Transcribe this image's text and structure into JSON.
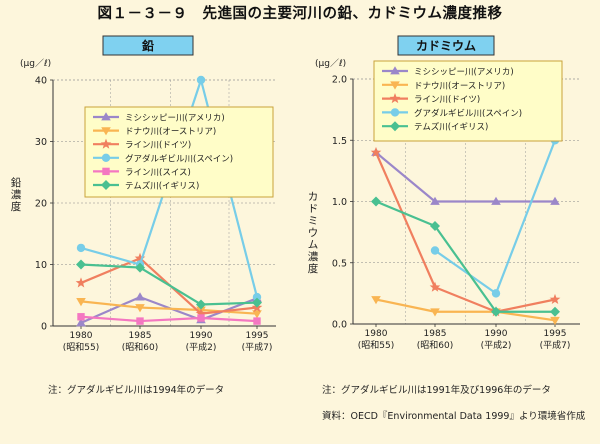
{
  "figure_title": "図１－３－９　先進国の主要河川の鉛、カドミウム濃度推移",
  "colors": {
    "background": "#fdf6dc",
    "panel_label_fill": "#7fd1f0",
    "legend_fill": "#fffdc8",
    "legend_border": "#c9a23a"
  },
  "chart_data": [
    {
      "type": "line",
      "title": "鉛",
      "unit_label": "(μg／ℓ)",
      "ylabel": "鉛濃度",
      "ylim": [
        0,
        40
      ],
      "yticks": [
        "0",
        "10",
        "20",
        "30",
        "40"
      ],
      "categories": [
        "1980\n(昭和55)",
        "1985\n(昭和60)",
        "1990\n(平成2)",
        "1995\n(平成7)"
      ],
      "legend_placement": "center",
      "series": [
        {
          "name": "ミシシッピー川(アメリカ)",
          "color": "#9b87c9",
          "marker": "triangle",
          "values": [
            0.5,
            4.7,
            1.0,
            4.5
          ]
        },
        {
          "name": "ドナウ川(オーストリア)",
          "color": "#f9b552",
          "marker": "triangle-down",
          "values": [
            4.0,
            3.0,
            2.6,
            2.0
          ]
        },
        {
          "name": "ライン川(ドイツ)",
          "color": "#f07f5f",
          "marker": "star",
          "values": [
            7.0,
            11.0,
            2.0,
            3.0
          ]
        },
        {
          "name": "グアダルギビル川(スペイン)",
          "color": "#77cde8",
          "marker": "circle",
          "values": [
            12.7,
            10.0,
            40.0,
            4.7
          ]
        },
        {
          "name": "ライン川(スイス)",
          "color": "#f477c1",
          "marker": "square",
          "values": [
            1.5,
            0.8,
            1.3,
            0.8
          ]
        },
        {
          "name": "テムズ川(イギリス)",
          "color": "#49c091",
          "marker": "diamond",
          "values": [
            10.0,
            9.5,
            3.5,
            3.8
          ]
        }
      ]
    },
    {
      "type": "line",
      "title": "カドミウム",
      "unit_label": "(μg／ℓ)",
      "ylabel": "カドミウム濃度",
      "ylim": [
        0,
        2
      ],
      "yticks": [
        "0.0",
        "0.5",
        "1.0",
        "1.5",
        "2.0"
      ],
      "categories": [
        "1980\n(昭和55)",
        "1985\n(昭和60)",
        "1990\n(平成2)",
        "1995\n(平成7)"
      ],
      "legend_placement": "top",
      "series": [
        {
          "name": "ミシシッピー川(アメリカ)",
          "color": "#9b87c9",
          "marker": "triangle",
          "values": [
            1.4,
            1.0,
            1.0,
            1.0
          ]
        },
        {
          "name": "ドナウ川(オーストリア)",
          "color": "#f9b552",
          "marker": "triangle-down",
          "values": [
            0.2,
            0.1,
            0.1,
            0.03
          ]
        },
        {
          "name": "ライン川(ドイツ)",
          "color": "#f07f5f",
          "marker": "star",
          "values": [
            1.4,
            0.3,
            0.1,
            0.2
          ]
        },
        {
          "name": "グアダルギビル川(スペイン)",
          "color": "#77cde8",
          "marker": "circle",
          "values": [
            null,
            0.6,
            0.25,
            1.5
          ]
        },
        {
          "name": "テムズ川(イギリス)",
          "color": "#49c091",
          "marker": "diamond",
          "values": [
            1.0,
            0.8,
            0.1,
            0.1
          ]
        }
      ]
    }
  ],
  "notes": {
    "left": "注：グアダルギビル川は1994年のデータ",
    "right": "注：グアダルギビル川は1991年及び1996年のデータ",
    "source": "資料：OECD『Environmental Data 1999』より環境省作成"
  }
}
